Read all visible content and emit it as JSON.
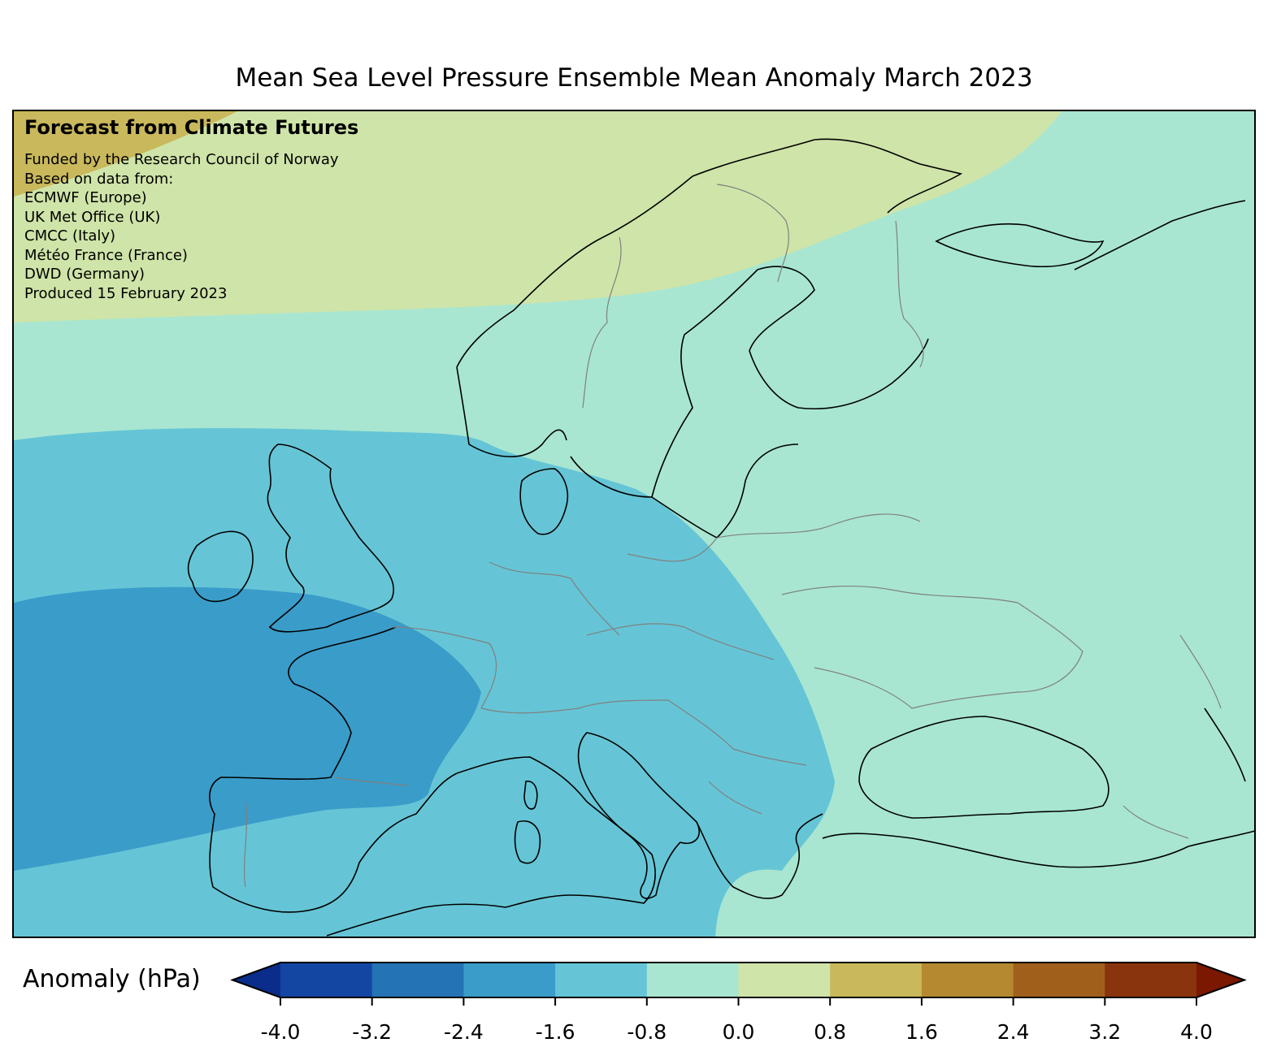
{
  "title": "Mean Sea Level Pressure Ensemble Mean Anomaly March 2023",
  "overlay": {
    "heading": "Forecast from Climate Futures",
    "lines": [
      "Funded by the Research Council of Norway",
      "Based on data from:",
      "ECMWF (Europe)",
      "UK Met Office (UK)",
      "CMCC (Italy)",
      "Météo France (France)",
      "DWD (Germany)",
      "Produced 15 February 2023"
    ]
  },
  "colorbar": {
    "label": "Anomaly (hPa)",
    "ticks": [
      "-4.0",
      "-3.2",
      "-2.4",
      "-1.6",
      "-0.8",
      "0.0",
      "0.8",
      "1.6",
      "2.4",
      "3.2",
      "4.0"
    ],
    "colors": [
      "#1346a2",
      "#2473b4",
      "#3a9cc9",
      "#65c5d6",
      "#a8e6d1",
      "#cfe4a8",
      "#c9b85c",
      "#b5892f",
      "#a0601c",
      "#89340c"
    ],
    "extend_low_color": "#0a2d8c",
    "extend_high_color": "#7a1802"
  },
  "map": {
    "region": "Europe",
    "field_colors": {
      "neg_2_4": "#3a9cc9",
      "neg_1_6": "#65c5d6",
      "neg_0_8": "#a8e6d1",
      "pos_0_0": "#cfe4a8",
      "pos_0_8": "#c9b85c"
    }
  }
}
